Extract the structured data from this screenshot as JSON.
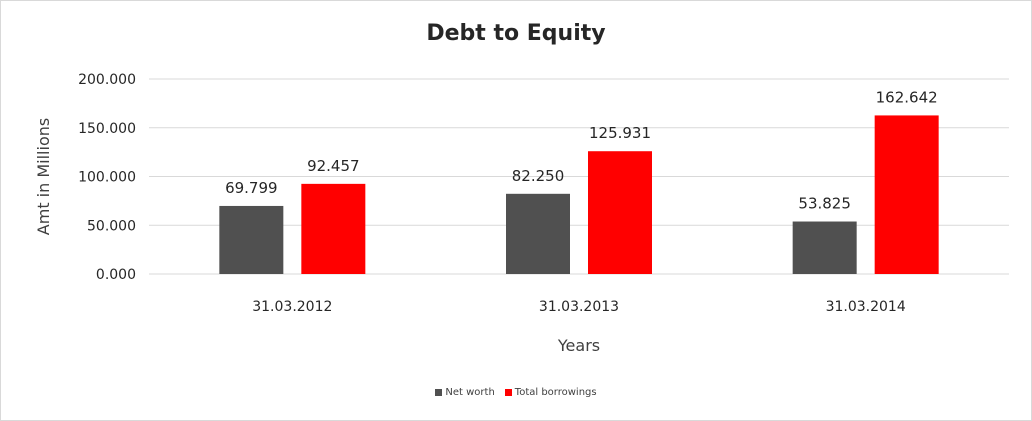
{
  "chart_data": {
    "type": "bar",
    "title": "Debt to Equity",
    "xlabel": "Years",
    "ylabel": "Amt in Millions",
    "categories": [
      "31.03.2012",
      "31.03.2013",
      "31.03.2014"
    ],
    "series": [
      {
        "name": "Net worth",
        "color": "#505050",
        "values": [
          69.799,
          82.25,
          53.825
        ],
        "labels": [
          "69.799",
          "82.250",
          "53.825"
        ]
      },
      {
        "name": "Total borrowings",
        "color": "#ff0000",
        "values": [
          92.457,
          125.931,
          162.642
        ],
        "labels": [
          "92.457",
          "125.931",
          "162.642"
        ]
      }
    ],
    "ylim": [
      0,
      200
    ],
    "yticks": [
      0,
      50,
      100,
      150,
      200
    ],
    "ytick_labels": [
      "0.000",
      "50.000",
      "100.000",
      "150.000",
      "200.000"
    ],
    "grid": true,
    "legend_position": "bottom"
  }
}
